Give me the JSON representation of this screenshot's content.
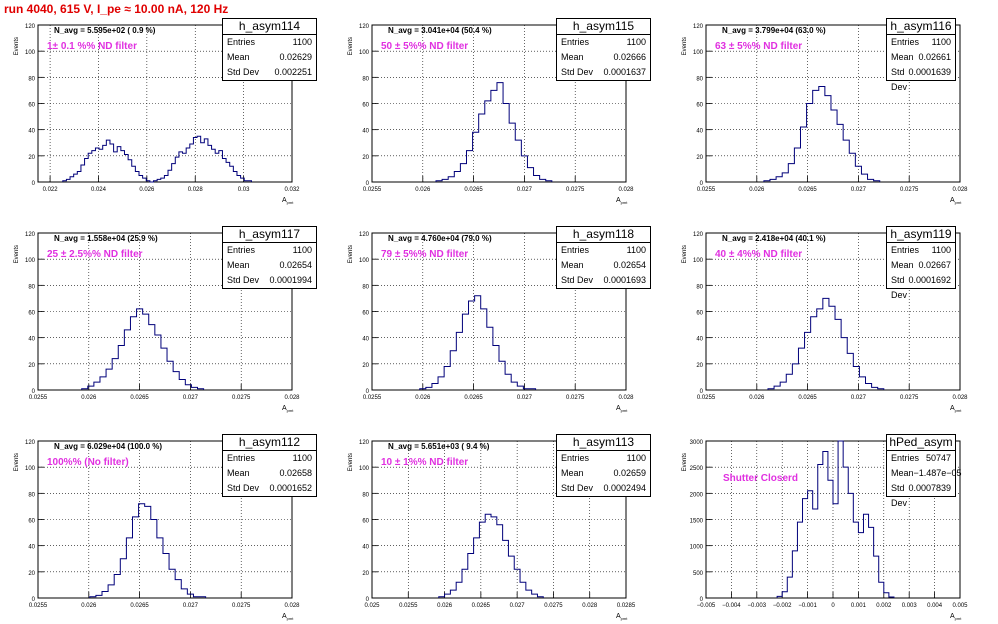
{
  "canvas_title": "run 4040,   615 V, I_pe ≈ 10.00 nA, 120 Hz",
  "y_axis_label": "Events",
  "x_axis_label": "A",
  "x_axis_sub": "pmt",
  "panels": [
    {
      "name": "h_asym114",
      "entries": "1100",
      "mean": "0.02629",
      "std": "0.002251",
      "navg": "N_avg = 5.595e+02 ( 0.9 %)",
      "filter": "1± 0.1 %% ND filter",
      "chart_data": {
        "type": "bar",
        "ylim": [
          0,
          120
        ],
        "xlim": [
          0.0215,
          0.032
        ],
        "yticks": [
          "0",
          "20",
          "40",
          "60",
          "80",
          "100",
          "120"
        ],
        "xticks": [
          {
            "v": 0.022,
            "t": "0.022"
          },
          {
            "v": 0.024,
            "t": "0.024"
          },
          {
            "v": 0.026,
            "t": "0.026"
          },
          {
            "v": 0.028,
            "t": "0.028"
          },
          {
            "v": 0.03,
            "t": "0.03"
          },
          {
            "v": 0.032,
            "t": "0.032"
          }
        ],
        "x": [
          0.0226,
          0.02275,
          0.0229,
          0.02305,
          0.0232,
          0.02335,
          0.0235,
          0.02365,
          0.0238,
          0.02395,
          0.0241,
          0.02425,
          0.0244,
          0.02455,
          0.0247,
          0.02485,
          0.025,
          0.02515,
          0.0253,
          0.02545,
          0.0256,
          0.02575,
          0.0259,
          0.02605,
          0.0262,
          0.02635,
          0.0265,
          0.02665,
          0.0268,
          0.02695,
          0.0271,
          0.02725,
          0.0274,
          0.02755,
          0.0277,
          0.02785,
          0.028,
          0.02815,
          0.0283,
          0.02845,
          0.0286,
          0.02875,
          0.0289,
          0.02905,
          0.0292,
          0.02935,
          0.0295,
          0.02965,
          0.0298,
          0.02995,
          0.0301,
          0.03025
        ],
        "values": [
          1,
          2,
          4,
          6,
          8,
          13,
          18,
          22,
          24,
          26,
          25,
          28,
          32,
          29,
          23,
          27,
          24,
          21,
          17,
          12,
          8,
          5,
          3,
          1,
          0,
          1,
          2,
          3,
          5,
          9,
          14,
          19,
          23,
          22,
          26,
          29,
          34,
          35,
          30,
          33,
          28,
          25,
          22,
          24,
          18,
          15,
          12,
          8,
          5,
          3,
          1,
          1
        ]
      }
    },
    {
      "name": "h_asym115",
      "entries": "1100",
      "mean": "0.02666",
      "std": "0.0001637",
      "navg": "N_avg = 3.041e+04 (50.4 %)",
      "filter": "50 ± 5%% ND filter",
      "chart_data": {
        "type": "bar",
        "ylim": [
          0,
          120
        ],
        "xlim": [
          0.0255,
          0.028
        ],
        "yticks": [
          "0",
          "20",
          "40",
          "60",
          "80",
          "100",
          "120"
        ],
        "xticks": [
          {
            "v": 0.0255,
            "t": "0.0255"
          },
          {
            "v": 0.026,
            "t": "0.026"
          },
          {
            "v": 0.0265,
            "t": "0.0265"
          },
          {
            "v": 0.027,
            "t": "0.027"
          },
          {
            "v": 0.0275,
            "t": "0.0275"
          },
          {
            "v": 0.028,
            "t": "0.028"
          }
        ],
        "x": [
          0.02616,
          0.02622,
          0.02628,
          0.02634,
          0.0264,
          0.02646,
          0.02652,
          0.02658,
          0.02664,
          0.0267,
          0.02676,
          0.02682,
          0.02688,
          0.02694,
          0.027,
          0.02706,
          0.02712,
          0.02718,
          0.02724
        ],
        "values": [
          1,
          2,
          4,
          8,
          14,
          24,
          38,
          52,
          62,
          70,
          76,
          60,
          45,
          32,
          20,
          11,
          5,
          2,
          1
        ]
      }
    },
    {
      "name": "h_asym116",
      "entries": "1100",
      "mean": "0.02661",
      "std": "0.0001639",
      "navg": "N_avg = 3.799e+04 (63.0 %)",
      "filter": "63 ± 5%% ND filter",
      "chart_data": {
        "type": "bar",
        "ylim": [
          0,
          120
        ],
        "xlim": [
          0.0255,
          0.028
        ],
        "yticks": [
          "0",
          "20",
          "40",
          "60",
          "80",
          "100",
          "120"
        ],
        "xticks": [
          {
            "v": 0.0255,
            "t": "0.0255"
          },
          {
            "v": 0.026,
            "t": "0.026"
          },
          {
            "v": 0.0265,
            "t": "0.0265"
          },
          {
            "v": 0.027,
            "t": "0.027"
          },
          {
            "v": 0.0275,
            "t": "0.0275"
          },
          {
            "v": 0.028,
            "t": "0.028"
          }
        ],
        "x": [
          0.0261,
          0.02616,
          0.02622,
          0.02628,
          0.02634,
          0.0264,
          0.02646,
          0.02652,
          0.02658,
          0.02664,
          0.0267,
          0.02676,
          0.02682,
          0.02688,
          0.02694,
          0.027,
          0.02706,
          0.02712,
          0.02718
        ],
        "values": [
          1,
          2,
          4,
          7,
          14,
          26,
          42,
          60,
          70,
          73,
          66,
          55,
          44,
          32,
          22,
          12,
          6,
          2,
          1
        ]
      }
    },
    {
      "name": "h_asym117",
      "entries": "1100",
      "mean": "0.02654",
      "std": "0.0001994",
      "navg": "N_avg = 1.558e+04 (25.9 %)",
      "filter": "25 ± 2.5%% ND filter",
      "chart_data": {
        "type": "bar",
        "ylim": [
          0,
          120
        ],
        "xlim": [
          0.0255,
          0.028
        ],
        "yticks": [
          "0",
          "20",
          "40",
          "60",
          "80",
          "100",
          "120"
        ],
        "xticks": [
          {
            "v": 0.0255,
            "t": "0.0255"
          },
          {
            "v": 0.026,
            "t": "0.026"
          },
          {
            "v": 0.0265,
            "t": "0.0265"
          },
          {
            "v": 0.027,
            "t": "0.027"
          },
          {
            "v": 0.0275,
            "t": "0.0275"
          },
          {
            "v": 0.028,
            "t": "0.028"
          }
        ],
        "x": [
          0.02596,
          0.02602,
          0.02608,
          0.02614,
          0.0262,
          0.02626,
          0.02632,
          0.02638,
          0.02644,
          0.0265,
          0.02656,
          0.02662,
          0.02668,
          0.02674,
          0.0268,
          0.02686,
          0.02692,
          0.02698,
          0.02704,
          0.0271
        ],
        "values": [
          1,
          3,
          6,
          10,
          16,
          24,
          34,
          46,
          56,
          62,
          58,
          50,
          42,
          32,
          22,
          14,
          8,
          4,
          2,
          1
        ]
      }
    },
    {
      "name": "h_asym118",
      "entries": "1100",
      "mean": "0.02654",
      "std": "0.0001693",
      "navg": "N_avg = 4.760e+04 (79.0 %)",
      "filter": "79 ± 5%% ND filter",
      "chart_data": {
        "type": "bar",
        "ylim": [
          0,
          120
        ],
        "xlim": [
          0.0255,
          0.028
        ],
        "yticks": [
          "0",
          "20",
          "40",
          "60",
          "80",
          "100",
          "120"
        ],
        "xticks": [
          {
            "v": 0.0255,
            "t": "0.0255"
          },
          {
            "v": 0.026,
            "t": "0.026"
          },
          {
            "v": 0.0265,
            "t": "0.0265"
          },
          {
            "v": 0.027,
            "t": "0.027"
          },
          {
            "v": 0.0275,
            "t": "0.0275"
          },
          {
            "v": 0.028,
            "t": "0.028"
          }
        ],
        "x": [
          0.026,
          0.02606,
          0.02612,
          0.02618,
          0.02624,
          0.0263,
          0.02636,
          0.02642,
          0.02648,
          0.02654,
          0.0266,
          0.02666,
          0.02672,
          0.02678,
          0.02684,
          0.0269,
          0.02696,
          0.02702,
          0.02708
        ],
        "values": [
          1,
          2,
          5,
          10,
          18,
          30,
          44,
          58,
          68,
          72,
          62,
          48,
          34,
          22,
          12,
          6,
          3,
          1,
          1
        ]
      }
    },
    {
      "name": "h_asym119",
      "entries": "1100",
      "mean": "0.02667",
      "std": "0.0001692",
      "navg": "N_avg = 2.418e+04 (40.1 %)",
      "filter": "40 ± 4%% ND filter",
      "chart_data": {
        "type": "bar",
        "ylim": [
          0,
          120
        ],
        "xlim": [
          0.0255,
          0.028
        ],
        "yticks": [
          "0",
          "20",
          "40",
          "60",
          "80",
          "100",
          "120"
        ],
        "xticks": [
          {
            "v": 0.0255,
            "t": "0.0255"
          },
          {
            "v": 0.026,
            "t": "0.026"
          },
          {
            "v": 0.0265,
            "t": "0.0265"
          },
          {
            "v": 0.027,
            "t": "0.027"
          },
          {
            "v": 0.0275,
            "t": "0.0275"
          },
          {
            "v": 0.028,
            "t": "0.028"
          }
        ],
        "x": [
          0.02614,
          0.0262,
          0.02626,
          0.02632,
          0.02638,
          0.02644,
          0.0265,
          0.02656,
          0.02662,
          0.02668,
          0.02674,
          0.0268,
          0.02686,
          0.02692,
          0.02698,
          0.02704,
          0.0271,
          0.02716,
          0.02722
        ],
        "values": [
          1,
          3,
          6,
          12,
          20,
          32,
          44,
          56,
          62,
          70,
          64,
          54,
          40,
          28,
          18,
          10,
          5,
          2,
          1
        ]
      }
    },
    {
      "name": "h_asym112",
      "entries": "1100",
      "mean": "0.02658",
      "std": "0.0001652",
      "navg": "N_avg = 6.029e+04 (100.0 %)",
      "filter": "100%% (No filter)",
      "chart_data": {
        "type": "bar",
        "ylim": [
          0,
          120
        ],
        "xlim": [
          0.0255,
          0.028
        ],
        "yticks": [
          "0",
          "20",
          "40",
          "60",
          "80",
          "100",
          "120"
        ],
        "xticks": [
          {
            "v": 0.0255,
            "t": "0.0255"
          },
          {
            "v": 0.026,
            "t": "0.026"
          },
          {
            "v": 0.0265,
            "t": "0.0265"
          },
          {
            "v": 0.027,
            "t": "0.027"
          },
          {
            "v": 0.0275,
            "t": "0.0275"
          },
          {
            "v": 0.028,
            "t": "0.028"
          }
        ],
        "x": [
          0.02604,
          0.0261,
          0.02616,
          0.02622,
          0.02628,
          0.02634,
          0.0264,
          0.02646,
          0.02652,
          0.02658,
          0.02664,
          0.0267,
          0.02676,
          0.02682,
          0.02688,
          0.02694,
          0.027,
          0.02706,
          0.02712
        ],
        "values": [
          1,
          2,
          5,
          10,
          18,
          30,
          46,
          62,
          72,
          70,
          60,
          46,
          34,
          22,
          14,
          7,
          3,
          1,
          1
        ]
      }
    },
    {
      "name": "h_asym113",
      "entries": "1100",
      "mean": "0.02659",
      "std": "0.0002494",
      "navg": "N_avg = 5.651e+03 ( 9.4 %)",
      "filter": "10 ± 1%% ND filter",
      "chart_data": {
        "type": "bar",
        "ylim": [
          0,
          120
        ],
        "xlim": [
          0.025,
          0.0285
        ],
        "yticks": [
          "0",
          "20",
          "40",
          "60",
          "80",
          "100",
          "120"
        ],
        "xticks": [
          {
            "v": 0.025,
            "t": "0.025"
          },
          {
            "v": 0.0255,
            "t": "0.0255"
          },
          {
            "v": 0.026,
            "t": "0.026"
          },
          {
            "v": 0.0265,
            "t": "0.0265"
          },
          {
            "v": 0.027,
            "t": "0.027"
          },
          {
            "v": 0.0275,
            "t": "0.0275"
          },
          {
            "v": 0.028,
            "t": "0.028"
          },
          {
            "v": 0.0285,
            "t": "0.0285"
          }
        ],
        "x": [
          0.02596,
          0.02604,
          0.02612,
          0.0262,
          0.02628,
          0.02636,
          0.02644,
          0.02652,
          0.0266,
          0.02668,
          0.02676,
          0.02684,
          0.02692,
          0.027,
          0.02708,
          0.02716,
          0.02724,
          0.02732
        ],
        "values": [
          1,
          3,
          6,
          12,
          22,
          34,
          46,
          58,
          64,
          62,
          56,
          44,
          32,
          22,
          12,
          6,
          3,
          1
        ]
      }
    },
    {
      "name": "hPed_asym",
      "entries": "50747",
      "mean": "−1.487e−05",
      "std": "0.0007839",
      "navg": "",
      "filter": "Shutter Closerd",
      "chart_data": {
        "type": "bar",
        "ylim": [
          0,
          3000
        ],
        "xlim": [
          -0.005,
          0.005
        ],
        "yticks": [
          "0",
          "500",
          "1000",
          "1500",
          "2000",
          "2500",
          "3000"
        ],
        "xticks": [
          {
            "v": -0.005,
            "t": "−0.005"
          },
          {
            "v": -0.004,
            "t": "−0.004"
          },
          {
            "v": -0.003,
            "t": "−0.003"
          },
          {
            "v": -0.002,
            "t": "−0.002"
          },
          {
            "v": -0.001,
            "t": "−0.001"
          },
          {
            "v": 0,
            "t": "0"
          },
          {
            "v": 0.001,
            "t": "0.001"
          },
          {
            "v": 0.002,
            "t": "0.002"
          },
          {
            "v": 0.003,
            "t": "0.003"
          },
          {
            "v": 0.004,
            "t": "0.004"
          },
          {
            "v": 0.005,
            "t": "0.005"
          }
        ],
        "x": [
          -0.0021,
          -0.0019,
          -0.0017,
          -0.0015,
          -0.0013,
          -0.0011,
          -0.0009,
          -0.0007,
          -0.0005,
          -0.0003,
          -0.0001,
          0.0001,
          0.0003,
          0.0005,
          0.0007,
          0.0009,
          0.0011,
          0.0013,
          0.0015,
          0.0017,
          0.0019,
          0.0021,
          0.0023
        ],
        "values": [
          30,
          120,
          400,
          900,
          1450,
          1900,
          2050,
          1700,
          2550,
          2800,
          2250,
          1800,
          3000,
          2500,
          2000,
          1450,
          1250,
          1600,
          1350,
          800,
          300,
          100,
          20
        ]
      }
    }
  ]
}
